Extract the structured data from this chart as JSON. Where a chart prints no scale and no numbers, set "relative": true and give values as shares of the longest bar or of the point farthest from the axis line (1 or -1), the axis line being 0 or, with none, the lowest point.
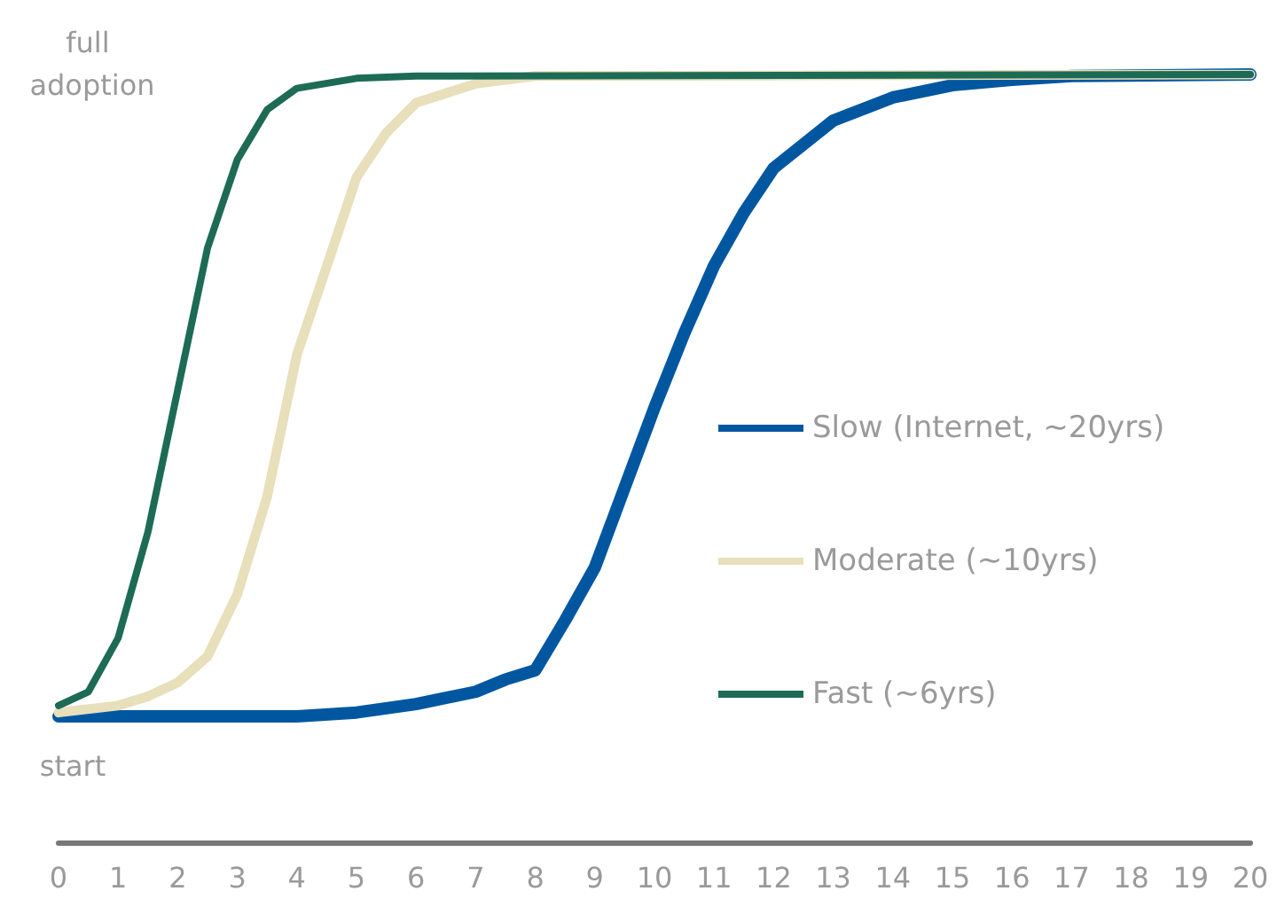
{
  "chart_data": {
    "type": "line",
    "relative": true,
    "xlim": [
      0,
      20
    ],
    "xticks": [
      0,
      1,
      2,
      3,
      4,
      5,
      6,
      7,
      8,
      9,
      10,
      11,
      12,
      13,
      14,
      15,
      16,
      17,
      18,
      19,
      20
    ],
    "grid": false,
    "legend": "right",
    "marker": "none",
    "line_style": "solid",
    "annotations": [
      "full adoption",
      "start"
    ],
    "series": [
      {
        "name": "Slow (Internet, ~20yrs)",
        "color": "#0057a0",
        "x": [
          0,
          4,
          5,
          6,
          7,
          7.5,
          8,
          8.5,
          9,
          9.5,
          10,
          10.5,
          11,
          11.5,
          12,
          13,
          14,
          15,
          16,
          17,
          20
        ],
        "values": [
          0.164,
          0.164,
          0.169,
          0.18,
          0.196,
          0.212,
          0.224,
          0.289,
          0.358,
          0.462,
          0.566,
          0.663,
          0.751,
          0.82,
          0.878,
          0.94,
          0.97,
          0.986,
          0.993,
          0.998,
          1
        ]
      },
      {
        "name": "Moderate (~10yrs)",
        "color": "#e8dfbb",
        "x": [
          0,
          1,
          1.5,
          2,
          2.5,
          3,
          3.5,
          4,
          4.5,
          5,
          5.5,
          6,
          7,
          8,
          20
        ],
        "values": [
          0.169,
          0.178,
          0.19,
          0.208,
          0.242,
          0.323,
          0.45,
          0.635,
          0.75,
          0.866,
          0.924,
          0.963,
          0.988,
          0.998,
          1
        ]
      },
      {
        "name": "Fast (~6yrs)",
        "color": "#1d6b55",
        "x": [
          0,
          0.5,
          1,
          1.5,
          2,
          2.5,
          3,
          3.5,
          4,
          5,
          6,
          20
        ],
        "values": [
          0.178,
          0.196,
          0.266,
          0.404,
          0.589,
          0.774,
          0.889,
          0.954,
          0.982,
          0.995,
          0.998,
          1
        ]
      }
    ]
  }
}
